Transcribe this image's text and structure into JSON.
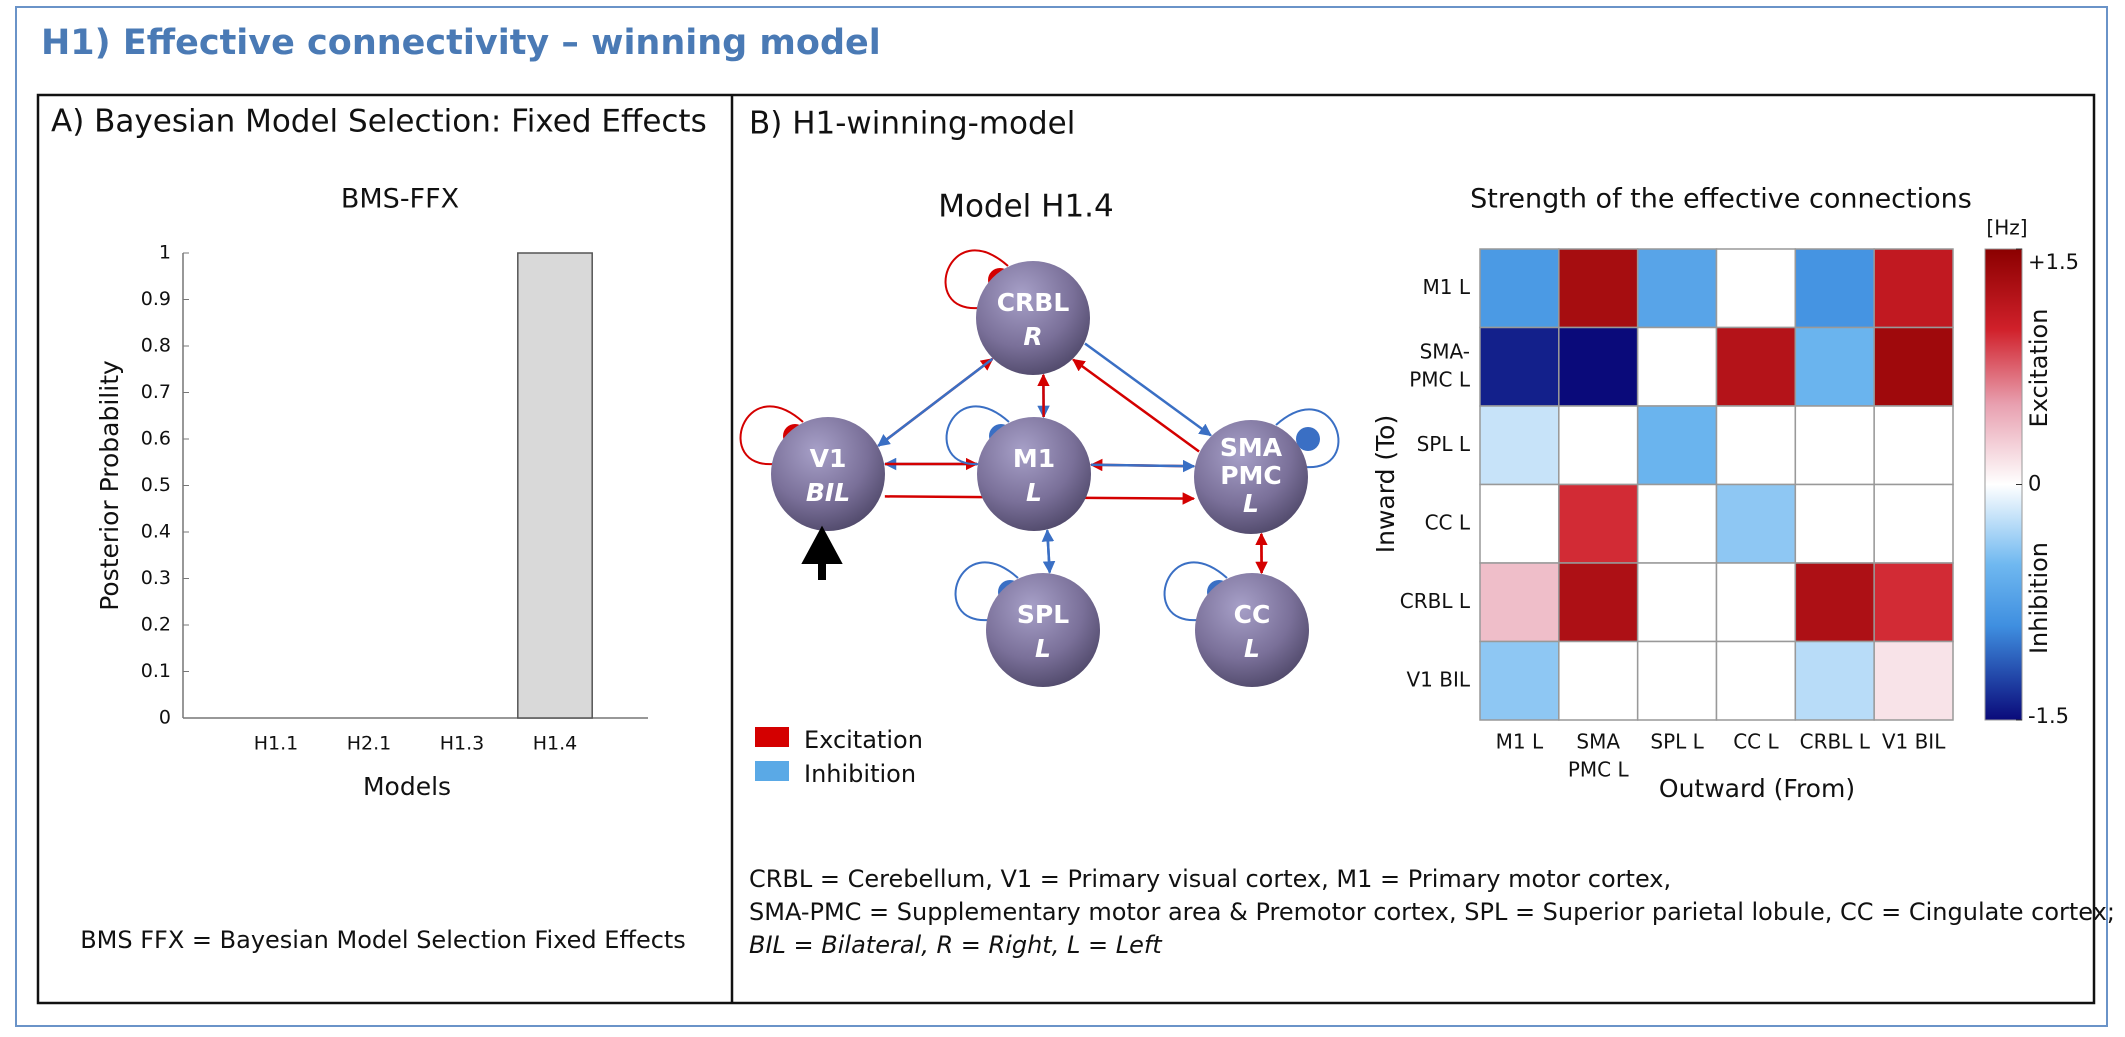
{
  "title": "H1) Effective connectivity – winning model",
  "panel_a": {
    "heading": "A) Bayesian Model Selection: Fixed Effects",
    "footnote": "BMS FFX = Bayesian Model Selection Fixed Effects"
  },
  "panel_b": {
    "heading": "B) H1-winning-model",
    "diagram": {
      "title": "Model H1.4",
      "nodes": [
        {
          "name": [
            "CRBL"
          ],
          "side": "R"
        },
        {
          "name": [
            "V1"
          ],
          "side": "BIL"
        },
        {
          "name": [
            "M1"
          ],
          "side": "L"
        },
        {
          "name": [
            "SMA",
            "PMC"
          ],
          "side": "L"
        },
        {
          "name": [
            "SPL"
          ],
          "side": "L"
        },
        {
          "name": [
            "CC"
          ],
          "side": "L"
        }
      ],
      "legend": [
        {
          "label": "Excitation",
          "color": "#d40000"
        },
        {
          "label": "Inhibition",
          "color": "#5aa9e6"
        }
      ]
    },
    "footnote": [
      "CRBL = Cerebellum, V1 = Primary visual cortex, M1 = Primary motor cortex,",
      "SMA-PMC = Supplementary motor area & Premotor cortex, SPL = Superior parietal lobule, CC = Cingulate cortex;",
      "BIL = Bilateral, R = Right, L = Left"
    ]
  },
  "chart_data": [
    {
      "type": "bar",
      "title": "BMS-FFX",
      "categories": [
        "H1.1",
        "H2.1",
        "H1.3",
        "H1.4"
      ],
      "values": [
        0,
        0,
        0,
        1
      ],
      "color": "#d9d9d9",
      "ylim": [
        0,
        1
      ],
      "yticks": [
        0,
        0.1,
        0.2,
        0.3,
        0.4,
        0.5,
        0.6,
        0.7,
        0.8,
        0.9,
        1
      ],
      "xlabel": "Models",
      "ylabel": "Posterior Probability"
    },
    {
      "type": "heatmap",
      "title": "Strength of the effective connections",
      "x_categories": [
        [
          "M1 L"
        ],
        [
          "SMA",
          "PMC L"
        ],
        [
          "SPL L"
        ],
        [
          "CC L"
        ],
        [
          "CRBL L"
        ],
        [
          "V1 BIL"
        ]
      ],
      "y_categories": [
        [
          "M1 L"
        ],
        [
          "SMA-",
          "PMC L"
        ],
        [
          "SPL L"
        ],
        [
          "CC L"
        ],
        [
          "CRBL L"
        ],
        [
          "V1 BIL"
        ]
      ],
      "values": [
        [
          -0.8,
          1.3,
          -0.7,
          null,
          -0.85,
          1.1
        ],
        [
          -1.4,
          -1.5,
          null,
          1.2,
          -0.55,
          1.35
        ],
        [
          -0.2,
          null,
          -0.55,
          null,
          null,
          null
        ],
        [
          null,
          0.95,
          null,
          -0.4,
          null,
          null
        ],
        [
          0.35,
          1.25,
          null,
          null,
          1.25,
          0.95
        ],
        [
          -0.4,
          null,
          null,
          null,
          -0.25,
          0.15
        ]
      ],
      "xlabel": "Outward (From)",
      "ylabel": "Inward (To)",
      "zlim": [
        -1.5,
        1.5
      ],
      "zticks": [
        {
          "value": 1.5,
          "label": "+1.5"
        },
        0,
        {
          "value": -1.5,
          "label": "-1.5"
        }
      ],
      "colorbar_unit": "[Hz]",
      "colorbar_high_label": "Excitation",
      "colorbar_low_label": "Inhibition"
    }
  ]
}
